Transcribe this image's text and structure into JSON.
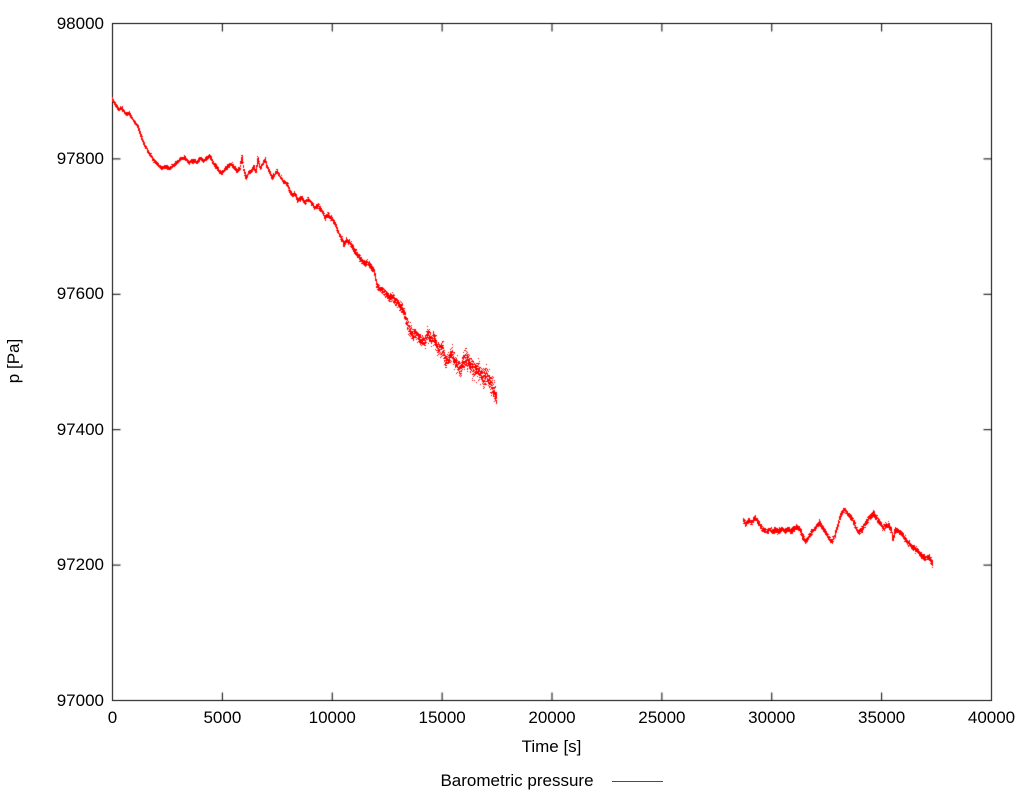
{
  "chart_data": {
    "type": "scatter",
    "title": "",
    "xlabel": "Time [s]",
    "ylabel": "p [Pa]",
    "xlim": [
      0,
      40000
    ],
    "ylim": [
      97000,
      98000
    ],
    "xticks": [
      0,
      5000,
      10000,
      15000,
      20000,
      25000,
      30000,
      35000,
      40000
    ],
    "yticks": [
      97000,
      97200,
      97400,
      97600,
      97800,
      98000
    ],
    "grid": false,
    "background_color": "#ffffff",
    "axis_color": "#000000",
    "legend_position": "bottom-center",
    "series": [
      {
        "name": "Barometric pressure",
        "color": "#ff0000",
        "style": "dots",
        "segments": [
          {
            "anchors": [
              [
                0,
                97891
              ],
              [
                140,
                97882
              ],
              [
                320,
                97873
              ],
              [
                455,
                97876
              ],
              [
                640,
                97866
              ],
              [
                775,
                97869
              ],
              [
                910,
                97861
              ],
              [
                1050,
                97855
              ],
              [
                1185,
                97848
              ],
              [
                1320,
                97835
              ],
              [
                1460,
                97823
              ],
              [
                1640,
                97812
              ],
              [
                1820,
                97803
              ],
              [
                2050,
                97793
              ],
              [
                2275,
                97787
              ],
              [
                2505,
                97789
              ],
              [
                2640,
                97786
              ],
              [
                2820,
                97792
              ],
              [
                3000,
                97796
              ],
              [
                3140,
                97801
              ],
              [
                3320,
                97802
              ],
              [
                3505,
                97795
              ],
              [
                3685,
                97798
              ],
              [
                3870,
                97795
              ],
              [
                4005,
                97801
              ],
              [
                4185,
                97798
              ],
              [
                4325,
                97802
              ],
              [
                4460,
                97805
              ],
              [
                4600,
                97796
              ],
              [
                4735,
                97789
              ],
              [
                4870,
                97784
              ],
              [
                5005,
                97780
              ],
              [
                5140,
                97786
              ],
              [
                5280,
                97790
              ],
              [
                5415,
                97793
              ],
              [
                5550,
                97789
              ],
              [
                5690,
                97783
              ],
              [
                5825,
                97786
              ],
              [
                5915,
                97805
              ],
              [
                6005,
                97783
              ],
              [
                6100,
                97773
              ],
              [
                6235,
                97780
              ],
              [
                6370,
                97783
              ],
              [
                6460,
                97790
              ],
              [
                6555,
                97780
              ],
              [
                6645,
                97802
              ],
              [
                6735,
                97787
              ],
              [
                6870,
                97793
              ],
              [
                6960,
                97801
              ],
              [
                7055,
                97790
              ],
              [
                7190,
                97780
              ],
              [
                7280,
                97773
              ],
              [
                7420,
                97778
              ],
              [
                7510,
                97783
              ],
              [
                7645,
                97775
              ],
              [
                7780,
                97768
              ],
              [
                7965,
                97764
              ],
              [
                8100,
                97753
              ],
              [
                8235,
                97746
              ],
              [
                8325,
                97750
              ],
              [
                8465,
                97739
              ],
              [
                8645,
                97743
              ],
              [
                8780,
                97736
              ],
              [
                8920,
                97742
              ],
              [
                9100,
                97734
              ],
              [
                9240,
                97728
              ],
              [
                9375,
                97733
              ],
              [
                9465,
                97727
              ],
              [
                9600,
                97721
              ],
              [
                9695,
                97713
              ],
              [
                9830,
                97719
              ],
              [
                10010,
                97712
              ],
              [
                10150,
                97706
              ],
              [
                10285,
                97694
              ],
              [
                10420,
                97684
              ],
              [
                10560,
                97675
              ],
              [
                10695,
                97680
              ],
              [
                10830,
                97677
              ],
              [
                10965,
                97669
              ],
              [
                11105,
                97662
              ],
              [
                11240,
                97657
              ],
              [
                11375,
                97650
              ],
              [
                11510,
                97646
              ],
              [
                11650,
                97647
              ],
              [
                11785,
                97641
              ],
              [
                11920,
                97638
              ],
              [
                12060,
                97614
              ],
              [
                12195,
                97609
              ],
              [
                12330,
                97606
              ],
              [
                12470,
                97603
              ],
              [
                12605,
                97595
              ],
              [
                12740,
                97598
              ],
              [
                12875,
                97591
              ],
              [
                13015,
                97588
              ],
              [
                13150,
                97581
              ],
              [
                13285,
                97575
              ],
              [
                13420,
                97558
              ],
              [
                13560,
                97547
              ],
              [
                13695,
                97541
              ],
              [
                13830,
                97544
              ],
              [
                13970,
                97536
              ],
              [
                14105,
                97532
              ],
              [
                14240,
                97529
              ],
              [
                14380,
                97542
              ],
              [
                14515,
                97535
              ],
              [
                14650,
                97538
              ],
              [
                14785,
                97524
              ],
              [
                14925,
                97517
              ],
              [
                15060,
                97521
              ],
              [
                15195,
                97498
              ],
              [
                15335,
                97505
              ],
              [
                15470,
                97514
              ],
              [
                15605,
                97502
              ],
              [
                15740,
                97495
              ],
              [
                15880,
                97490
              ],
              [
                16015,
                97502
              ],
              [
                16105,
                97507
              ],
              [
                16240,
                97499
              ],
              [
                16380,
                97493
              ],
              [
                16515,
                97487
              ],
              [
                16650,
                97490
              ],
              [
                16790,
                97480
              ],
              [
                16925,
                97476
              ],
              [
                17060,
                97483
              ],
              [
                17195,
                97473
              ],
              [
                17335,
                97462
              ],
              [
                17425,
                97455
              ],
              [
                17515,
                97446
              ]
            ],
            "noise_profile": [
              [
                0,
                2
              ],
              [
                9000,
                2.5
              ],
              [
                12000,
                4
              ],
              [
                13600,
                7
              ],
              [
                15000,
                9
              ],
              [
                17515,
                12
              ]
            ]
          },
          {
            "anchors": [
              [
                28715,
                97269
              ],
              [
                28850,
                97261
              ],
              [
                28990,
                97267
              ],
              [
                29125,
                97263
              ],
              [
                29260,
                97272
              ],
              [
                29395,
                97265
              ],
              [
                29535,
                97257
              ],
              [
                29670,
                97253
              ],
              [
                29805,
                97250
              ],
              [
                29940,
                97253
              ],
              [
                30080,
                97250
              ],
              [
                30215,
                97253
              ],
              [
                30350,
                97250
              ],
              [
                30490,
                97254
              ],
              [
                30625,
                97251
              ],
              [
                30760,
                97254
              ],
              [
                30900,
                97250
              ],
              [
                31035,
                97254
              ],
              [
                31170,
                97257
              ],
              [
                31305,
                97254
              ],
              [
                31445,
                97242
              ],
              [
                31580,
                97236
              ],
              [
                31715,
                97242
              ],
              [
                31855,
                97250
              ],
              [
                31990,
                97254
              ],
              [
                32125,
                97260
              ],
              [
                32215,
                97263
              ],
              [
                32355,
                97256
              ],
              [
                32490,
                97248
              ],
              [
                32625,
                97241
              ],
              [
                32765,
                97235
              ],
              [
                32900,
                97245
              ],
              [
                33035,
                97260
              ],
              [
                33170,
                97275
              ],
              [
                33310,
                97282
              ],
              [
                33445,
                97279
              ],
              [
                33580,
                97273
              ],
              [
                33720,
                97268
              ],
              [
                33855,
                97256
              ],
              [
                33990,
                97248
              ],
              [
                34125,
                97254
              ],
              [
                34265,
                97260
              ],
              [
                34400,
                97268
              ],
              [
                34535,
                97273
              ],
              [
                34675,
                97277
              ],
              [
                34810,
                97270
              ],
              [
                34945,
                97264
              ],
              [
                35080,
                97256
              ],
              [
                35220,
                97259
              ],
              [
                35355,
                97260
              ],
              [
                35490,
                97251
              ],
              [
                35540,
                97239
              ],
              [
                35675,
                97254
              ],
              [
                35810,
                97251
              ],
              [
                35945,
                97247
              ],
              [
                36085,
                97241
              ],
              [
                36220,
                97234
              ],
              [
                36355,
                97229
              ],
              [
                36490,
                97226
              ],
              [
                36630,
                97223
              ],
              [
                36765,
                97217
              ],
              [
                36900,
                97213
              ],
              [
                37040,
                97210
              ],
              [
                37175,
                97213
              ],
              [
                37265,
                97207
              ],
              [
                37355,
                97202
              ]
            ],
            "noise_profile": [
              [
                28715,
                3
              ],
              [
                37355,
                3.5
              ]
            ]
          }
        ]
      }
    ]
  }
}
